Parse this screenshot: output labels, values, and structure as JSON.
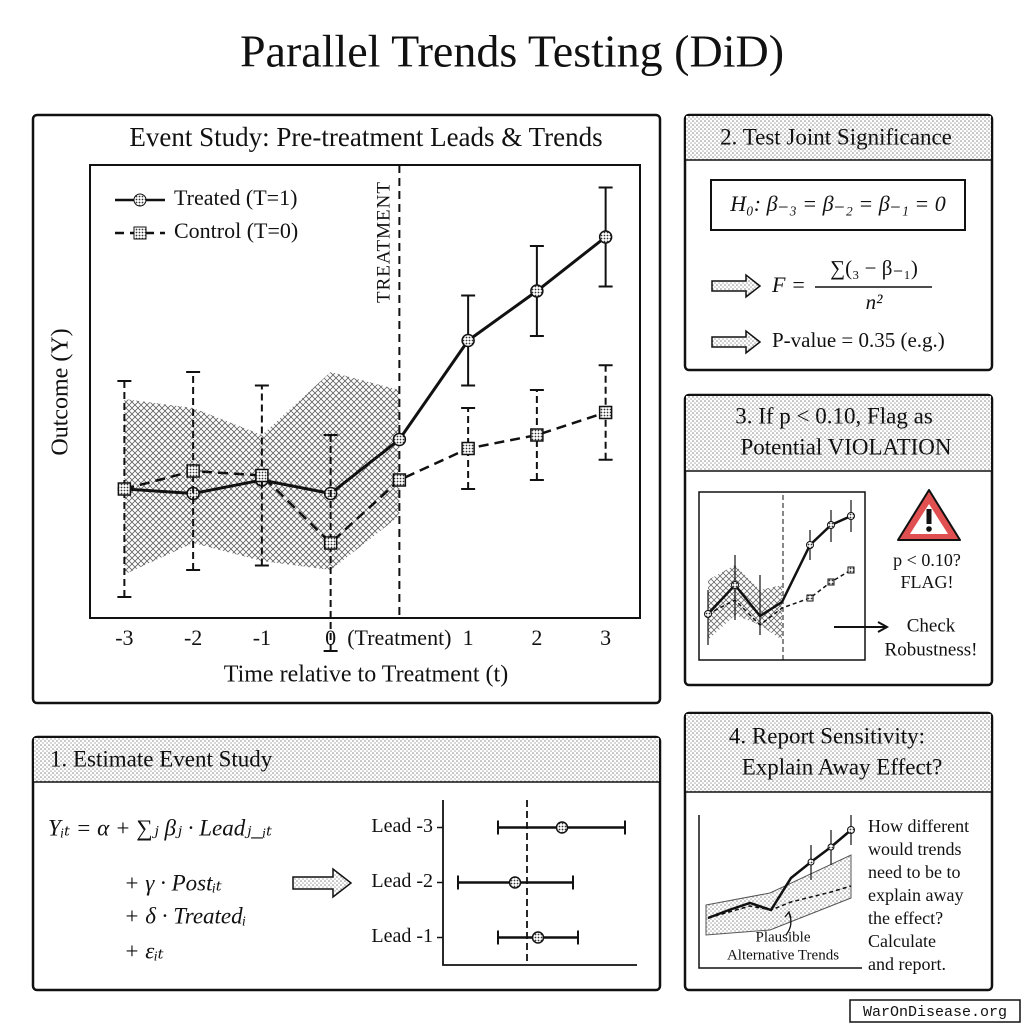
{
  "title": "Parallel Trends Testing (DiD)",
  "chart_data": [
    {
      "type": "line",
      "title": "Event Study: Pre-treatment Leads & Trends",
      "x_label": "Time relative to Treatment (t)",
      "y_label": "Outcome (Y)",
      "treatment_label": "TREATMENT",
      "categories": [
        "-3",
        "-2",
        "-1",
        "0",
        "(Treatment)",
        "1",
        "2",
        "3"
      ],
      "ylim": [
        0,
        10
      ],
      "legend": "upper left",
      "band": {
        "upper": [
          4.8,
          4.6,
          4.0,
          5.4,
          5.0,
          null,
          null,
          null
        ],
        "lower": [
          0.9,
          1.6,
          1.2,
          1.0,
          2.2,
          null,
          null,
          null
        ]
      },
      "series": [
        {
          "name": "Treated (T=1)",
          "color": "#111111",
          "line_style": "solid",
          "marker": "circle",
          "values": [
            2.8,
            2.7,
            3.0,
            2.7,
            3.9,
            6.1,
            7.2,
            8.4
          ],
          "errors": [
            null,
            null,
            null,
            null,
            null,
            1.0,
            1.0,
            1.1
          ]
        },
        {
          "name": "Control (T=0)",
          "color": "#111111",
          "line_style": "dashed",
          "marker": "square",
          "values": [
            2.8,
            3.2,
            3.1,
            1.6,
            3.0,
            3.7,
            4.0,
            4.5
          ],
          "errors": [
            2.4,
            2.2,
            2.0,
            2.4,
            null,
            0.9,
            1.0,
            1.05
          ]
        }
      ]
    },
    {
      "type": "forest",
      "categories": [
        "Lead -3",
        "Lead -2",
        "Lead -1"
      ],
      "xlim": [
        -1.68,
        2.2
      ],
      "values": [
        0.7,
        -0.24,
        0.22
      ],
      "lower": [
        -0.58,
        -1.38,
        -0.58
      ],
      "upper": [
        1.96,
        0.92,
        1.02
      ],
      "color": "#111111"
    }
  ],
  "panel_1": {
    "header": "1. Estimate Event Study",
    "equation": [
      "Yᵢₜ = α + ∑ⱼ βⱼ · Leadⱼ_ᵢₜ",
      "+ γ · Postᵢₜ",
      "+ δ · Treatedᵢ",
      "+ εᵢₜ"
    ]
  },
  "panel_2": {
    "header": "2. Test Joint Significance",
    "hypothesis": "H₀: β₋₃ = β₋₂ = β₋₁ = 0",
    "f_lhs": "F =",
    "f_numerator": "∑(₃ − β₋₁)",
    "f_denominator": "n²",
    "p_value": "P-value = 0.35 (e.g.)"
  },
  "panel_3": {
    "header": [
      "3. If p < 0.10, Flag as",
      "Potential VIOLATION"
    ],
    "flag": [
      "p < 0.10?",
      "FLAG!"
    ],
    "check": [
      "Check",
      "Robustness!"
    ]
  },
  "panel_4": {
    "header": [
      "4. Report Sensitivity:",
      "Explain Away Effect?"
    ],
    "note": [
      "How different",
      "would trends",
      "need to be to",
      "explain away",
      "the effect?",
      "Calculate",
      "and report."
    ],
    "band_label": [
      "Plausible",
      "Alternative Trends"
    ]
  },
  "footer": "WarOnDisease.org"
}
